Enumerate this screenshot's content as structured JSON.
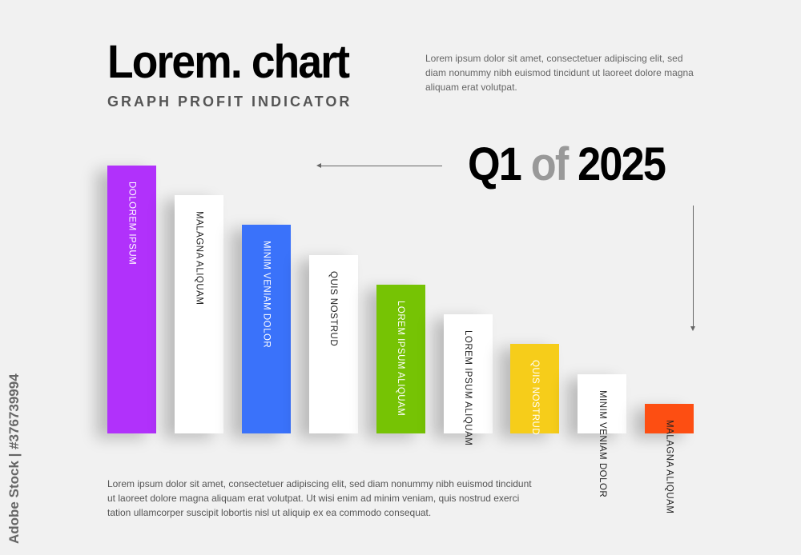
{
  "header": {
    "title": "Lorem. chart",
    "subtitle": "GRAPH PROFIT INDICATOR",
    "intro": "Lorem ipsum dolor sit amet, consectetuer adipiscing elit, sed diam nonummy nibh euismod tincidunt ut laoreet dolore magna aliquam erat volutpat."
  },
  "period": {
    "q": "Q1",
    "of": "of",
    "year": "2025"
  },
  "chart_data": {
    "type": "bar",
    "orientation": "vertical",
    "categories": [
      "DOLOREM IPSUM",
      "MALAGNA ALIQUAM",
      "MINIM VENIAM DOLOR",
      "QUIS NOSTRUD",
      "LOREM IPSUM ALIQUAM",
      "LOREM IPSUM ALIQUAM",
      "QUIS NOSTRUD",
      "MINIM VENIAM DOLOR",
      "MALAGNA ALIQUAM"
    ],
    "values": [
      9,
      8,
      7,
      6,
      5,
      4,
      3,
      2,
      1
    ],
    "colors": [
      "#b131fb",
      "#ffffff",
      "#3a72fa",
      "#ffffff",
      "#76c304",
      "#ffffff",
      "#f6cd1a",
      "#ffffff",
      "#fd4e12"
    ],
    "label_colors": [
      "#ffffff",
      "#222222",
      "#ffffff",
      "#222222",
      "#ffffff",
      "#222222",
      "#ffffff",
      "#222222",
      "#222222"
    ],
    "axes": "none",
    "grid": false,
    "legend": "none"
  },
  "footer": "Lorem ipsum dolor sit amet, consectetuer adipiscing elit, sed diam nonummy nibh euismod tincidunt ut laoreet dolore magna aliquam erat volutpat. Ut wisi enim ad minim veniam, quis nostrud exerci tation ullamcorper suscipit lobortis nisl ut aliquip ex ea commodo consequat.",
  "watermark": "Adobe Stock | #376739994"
}
